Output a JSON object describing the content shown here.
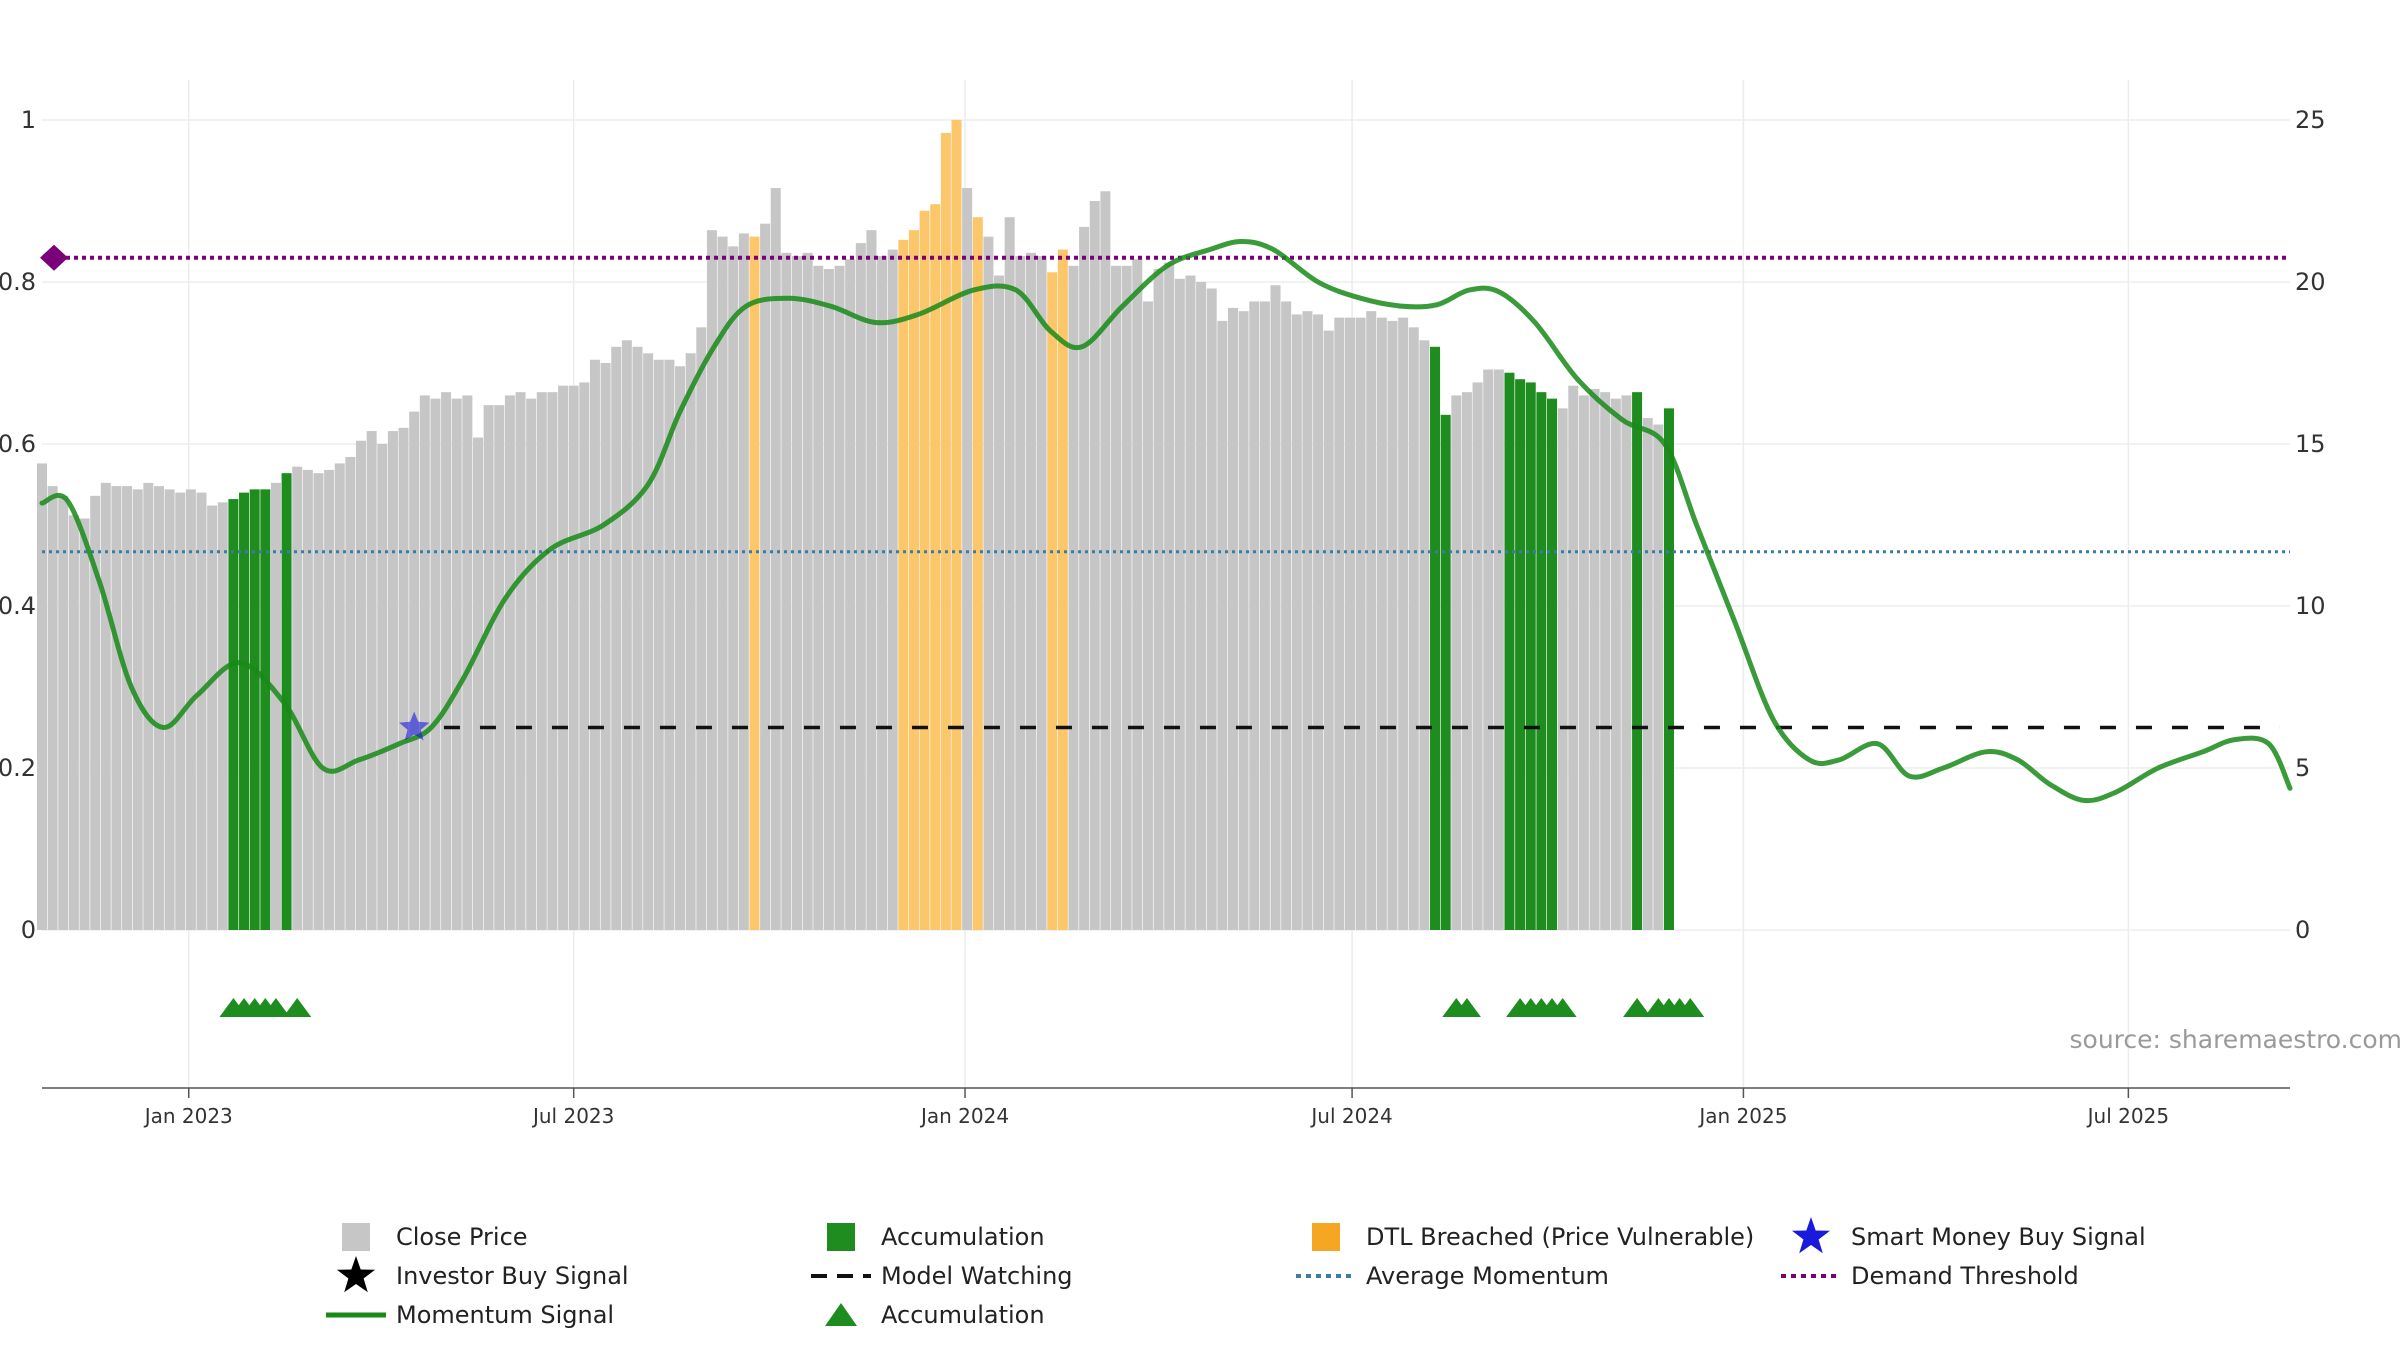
{
  "chart_data": {
    "type": "bar",
    "title": "",
    "watermark": "source: sharemaestro.com",
    "x_axis": {
      "tick_labels": [
        "Jan 2023",
        "Jul 2023",
        "Jan 2024",
        "Jul 2024",
        "Jan 2025",
        "Jul 2025"
      ],
      "tick_dates": [
        "2023-01-01",
        "2023-07-01",
        "2024-01-01",
        "2024-07-01",
        "2025-01-01",
        "2025-07-01"
      ],
      "range": [
        "2022-10-24",
        "2025-09-15"
      ]
    },
    "left_axis": {
      "label": "",
      "ticks": [
        "0",
        "0.2",
        "0.4",
        "0.6",
        "0.8",
        "1"
      ],
      "ylim": [
        0,
        1
      ]
    },
    "right_axis": {
      "label": "",
      "ticks": [
        "0",
        "5",
        "10",
        "15",
        "20",
        "25"
      ],
      "ylim": [
        0,
        25
      ]
    },
    "grid": true,
    "colors": {
      "close_price": "#c6c6c6",
      "accumulation": "#1e8c1e",
      "dtl_breached": "#fcc66a",
      "smart_money": "#1a1adc",
      "momentum": "#178a17",
      "model_watching": "#111111",
      "average_momentum": "#3a7ca5",
      "demand_threshold": "#7a007a",
      "investor_buy": "#000000"
    },
    "bar_start": "2022-10-24",
    "bar_step_days": 5,
    "close_price": [
      14.4,
      13.7,
      13.4,
      12.8,
      12.7,
      13.4,
      13.8,
      13.7,
      13.7,
      13.6,
      13.8,
      13.7,
      13.6,
      13.5,
      13.6,
      13.5,
      13.1,
      13.2,
      13.3,
      13.5,
      13.6,
      13.6,
      13.8,
      14.1,
      14.3,
      14.2,
      14.1,
      14.2,
      14.4,
      14.6,
      15.1,
      15.4,
      15.0,
      15.4,
      15.5,
      16.0,
      16.5,
      16.4,
      16.6,
      16.4,
      16.5,
      15.2,
      16.2,
      16.2,
      16.5,
      16.6,
      16.4,
      16.6,
      16.6,
      16.8,
      16.8,
      16.9,
      17.6,
      17.5,
      18.0,
      18.2,
      18.0,
      17.8,
      17.6,
      17.6,
      17.4,
      17.8,
      18.6,
      21.6,
      21.4,
      21.1,
      21.5,
      21.4,
      21.8,
      22.9,
      20.9,
      20.8,
      20.9,
      20.5,
      20.4,
      20.5,
      20.7,
      21.2,
      21.6,
      20.8,
      21.0,
      21.3,
      21.6,
      22.2,
      22.4,
      24.6,
      25.0,
      22.9,
      22.0,
      21.4,
      20.2,
      22.0,
      20.8,
      20.9,
      20.8,
      20.3,
      21.0,
      20.5,
      21.7,
      22.5,
      22.8,
      20.5,
      20.5,
      20.7,
      19.4,
      20.4,
      20.6,
      20.1,
      20.2,
      20.0,
      19.8,
      18.8,
      19.2,
      19.1,
      19.4,
      19.4,
      19.9,
      19.4,
      19.0,
      19.1,
      19.0,
      18.5,
      18.9,
      18.9,
      18.9,
      19.1,
      18.9,
      18.8,
      18.9,
      18.6,
      18.2,
      18.0,
      15.9,
      16.5,
      16.6,
      16.9,
      17.3,
      17.3,
      17.2,
      17.0,
      16.9,
      16.6,
      16.4,
      16.1,
      16.8,
      16.5,
      16.7,
      16.6,
      16.4,
      16.5,
      16.6,
      15.8,
      15.6,
      16.1
    ],
    "accumulation_bars": [
      18,
      19,
      20,
      21,
      23,
      131,
      132,
      138,
      139,
      140,
      141,
      142,
      150,
      153,
      154,
      155
    ],
    "dtl_breached_bars": [
      67,
      81,
      82,
      83,
      84,
      85,
      86,
      88,
      95,
      96
    ],
    "momentum_signal": [
      {
        "x": "2022-10-24",
        "y": 0.527
      },
      {
        "x": "2022-11-05",
        "y": 0.53
      },
      {
        "x": "2022-11-20",
        "y": 0.43
      },
      {
        "x": "2022-12-05",
        "y": 0.3
      },
      {
        "x": "2022-12-20",
        "y": 0.25
      },
      {
        "x": "2023-01-05",
        "y": 0.29
      },
      {
        "x": "2023-01-25",
        "y": 0.33
      },
      {
        "x": "2023-02-15",
        "y": 0.28
      },
      {
        "x": "2023-03-05",
        "y": 0.2
      },
      {
        "x": "2023-03-22",
        "y": 0.21
      },
      {
        "x": "2023-04-10",
        "y": 0.23
      },
      {
        "x": "2023-04-25",
        "y": 0.25
      },
      {
        "x": "2023-05-10",
        "y": 0.31
      },
      {
        "x": "2023-05-30",
        "y": 0.41
      },
      {
        "x": "2023-06-20",
        "y": 0.47
      },
      {
        "x": "2023-07-15",
        "y": 0.5
      },
      {
        "x": "2023-08-05",
        "y": 0.55
      },
      {
        "x": "2023-08-20",
        "y": 0.64
      },
      {
        "x": "2023-09-05",
        "y": 0.72
      },
      {
        "x": "2023-09-20",
        "y": 0.77
      },
      {
        "x": "2023-10-10",
        "y": 0.78
      },
      {
        "x": "2023-10-30",
        "y": 0.77
      },
      {
        "x": "2023-11-20",
        "y": 0.75
      },
      {
        "x": "2023-12-10",
        "y": 0.76
      },
      {
        "x": "2024-01-05",
        "y": 0.79
      },
      {
        "x": "2024-01-25",
        "y": 0.79
      },
      {
        "x": "2024-02-10",
        "y": 0.74
      },
      {
        "x": "2024-02-25",
        "y": 0.72
      },
      {
        "x": "2024-03-15",
        "y": 0.77
      },
      {
        "x": "2024-04-05",
        "y": 0.82
      },
      {
        "x": "2024-04-25",
        "y": 0.84
      },
      {
        "x": "2024-05-10",
        "y": 0.85
      },
      {
        "x": "2024-05-25",
        "y": 0.84
      },
      {
        "x": "2024-06-15",
        "y": 0.8
      },
      {
        "x": "2024-07-05",
        "y": 0.78
      },
      {
        "x": "2024-07-25",
        "y": 0.77
      },
      {
        "x": "2024-08-10",
        "y": 0.772
      },
      {
        "x": "2024-08-25",
        "y": 0.79
      },
      {
        "x": "2024-09-08",
        "y": 0.788
      },
      {
        "x": "2024-09-25",
        "y": 0.75
      },
      {
        "x": "2024-10-15",
        "y": 0.68
      },
      {
        "x": "2024-11-05",
        "y": 0.63
      },
      {
        "x": "2024-11-25",
        "y": 0.6
      },
      {
        "x": "2024-12-10",
        "y": 0.5
      },
      {
        "x": "2024-12-28",
        "y": 0.38
      },
      {
        "x": "2025-01-15",
        "y": 0.26
      },
      {
        "x": "2025-02-01",
        "y": 0.21
      },
      {
        "x": "2025-02-15",
        "y": 0.21
      },
      {
        "x": "2025-03-05",
        "y": 0.23
      },
      {
        "x": "2025-03-20",
        "y": 0.19
      },
      {
        "x": "2025-04-05",
        "y": 0.2
      },
      {
        "x": "2025-04-25",
        "y": 0.22
      },
      {
        "x": "2025-05-10",
        "y": 0.21
      },
      {
        "x": "2025-05-25",
        "y": 0.18
      },
      {
        "x": "2025-06-10",
        "y": 0.16
      },
      {
        "x": "2025-06-25",
        "y": 0.17
      },
      {
        "x": "2025-07-15",
        "y": 0.2
      },
      {
        "x": "2025-08-05",
        "y": 0.22
      },
      {
        "x": "2025-08-20",
        "y": 0.235
      },
      {
        "x": "2025-09-05",
        "y": 0.23
      },
      {
        "x": "2025-09-15",
        "y": 0.175
      }
    ],
    "average_momentum": 0.467,
    "model_watching": {
      "y": 0.25,
      "from": "2023-05-01"
    },
    "demand_threshold": 0.83,
    "smart_money_buy_signals": [
      {
        "x": "2023-04-17",
        "y": 0.25
      }
    ],
    "accumulation_markers_bars": [
      18,
      19,
      20,
      21,
      22,
      24,
      133,
      134,
      139,
      140,
      141,
      142,
      143,
      150,
      152,
      153,
      154,
      155
    ],
    "investor_buy_signals": [],
    "legend": {
      "placement": "bottom",
      "items": [
        {
          "label": "Close Price",
          "symbol": "square",
          "color": "#c6c6c6"
        },
        {
          "label": "Accumulation",
          "symbol": "square",
          "color": "#1e8c1e"
        },
        {
          "label": "DTL Breached (Price Vulnerable)",
          "symbol": "square",
          "color": "#f5a623"
        },
        {
          "label": "Smart Money Buy Signal",
          "symbol": "star",
          "color": "#1a1adc"
        },
        {
          "label": "Investor Buy Signal",
          "symbol": "star",
          "color": "#000000"
        },
        {
          "label": "Model Watching",
          "symbol": "dash",
          "color": "#111111"
        },
        {
          "label": "Average Momentum",
          "symbol": "dot",
          "color": "#3a7ca5"
        },
        {
          "label": "Demand Threshold",
          "symbol": "dot",
          "color": "#7a007a"
        },
        {
          "label": "Momentum Signal",
          "symbol": "line",
          "color": "#178a17"
        },
        {
          "label": "Accumulation",
          "symbol": "triangle",
          "color": "#1e8c1e"
        }
      ]
    }
  }
}
